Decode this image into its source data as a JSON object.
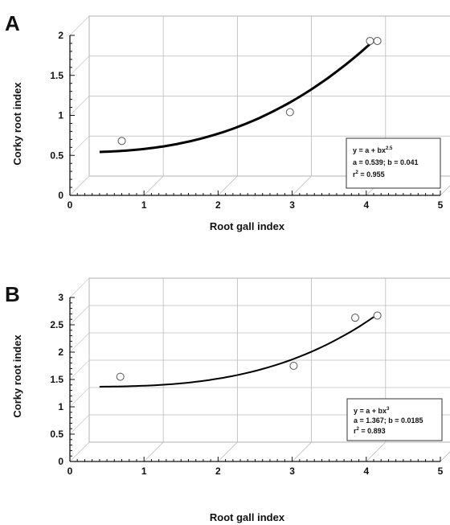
{
  "chart_data": [
    {
      "type": "scatter",
      "panel_label": "A",
      "xlabel": "Root gall index",
      "ylabel": "Corky root index",
      "xlim": [
        0,
        5
      ],
      "ylim": [
        0,
        2
      ],
      "xticks": [
        "0",
        "1",
        "2",
        "3",
        "4",
        "5"
      ],
      "yticks": [
        "0",
        "0.5",
        "1",
        "1.5",
        "2"
      ],
      "grid": true,
      "points": [
        {
          "x": 0.7,
          "y": 0.68
        },
        {
          "x": 2.97,
          "y": 1.04
        },
        {
          "x": 4.05,
          "y": 1.93
        },
        {
          "x": 4.15,
          "y": 1.93
        }
      ],
      "fit": {
        "a": 0.539,
        "b": 0.041,
        "power": 2.5,
        "x_range": [
          0.4,
          4.1
        ]
      },
      "equation": {
        "line1_prefix": "y = a + bx",
        "line1_sup": "2.5",
        "line2": "a = 0.539; b = 0.041",
        "line3_prefix": "r",
        "line3_sup": "2",
        "line3_suffix": " = 0.955"
      }
    },
    {
      "type": "scatter",
      "panel_label": "B",
      "xlabel": "Root gall index",
      "ylabel": "Corky root index",
      "xlim": [
        0,
        5
      ],
      "ylim": [
        0,
        3
      ],
      "xticks": [
        "0",
        "1",
        "2",
        "3",
        "4",
        "5"
      ],
      "yticks": [
        "0",
        "0.5",
        "1",
        "1.5",
        "2",
        "2.5",
        "3"
      ],
      "grid": true,
      "points": [
        {
          "x": 0.68,
          "y": 1.55
        },
        {
          "x": 3.02,
          "y": 1.75
        },
        {
          "x": 3.85,
          "y": 2.63
        },
        {
          "x": 4.15,
          "y": 2.67
        }
      ],
      "fit": {
        "a": 1.367,
        "b": 0.0185,
        "power": 3,
        "x_range": [
          0.4,
          4.1
        ]
      },
      "equation": {
        "line1_prefix": "y = a + bx",
        "line1_sup": "3",
        "line2": "a = 1.367; b = 0.0185",
        "line3_prefix": "r",
        "line3_sup": "2",
        "line3_suffix": " = 0.893"
      }
    }
  ]
}
